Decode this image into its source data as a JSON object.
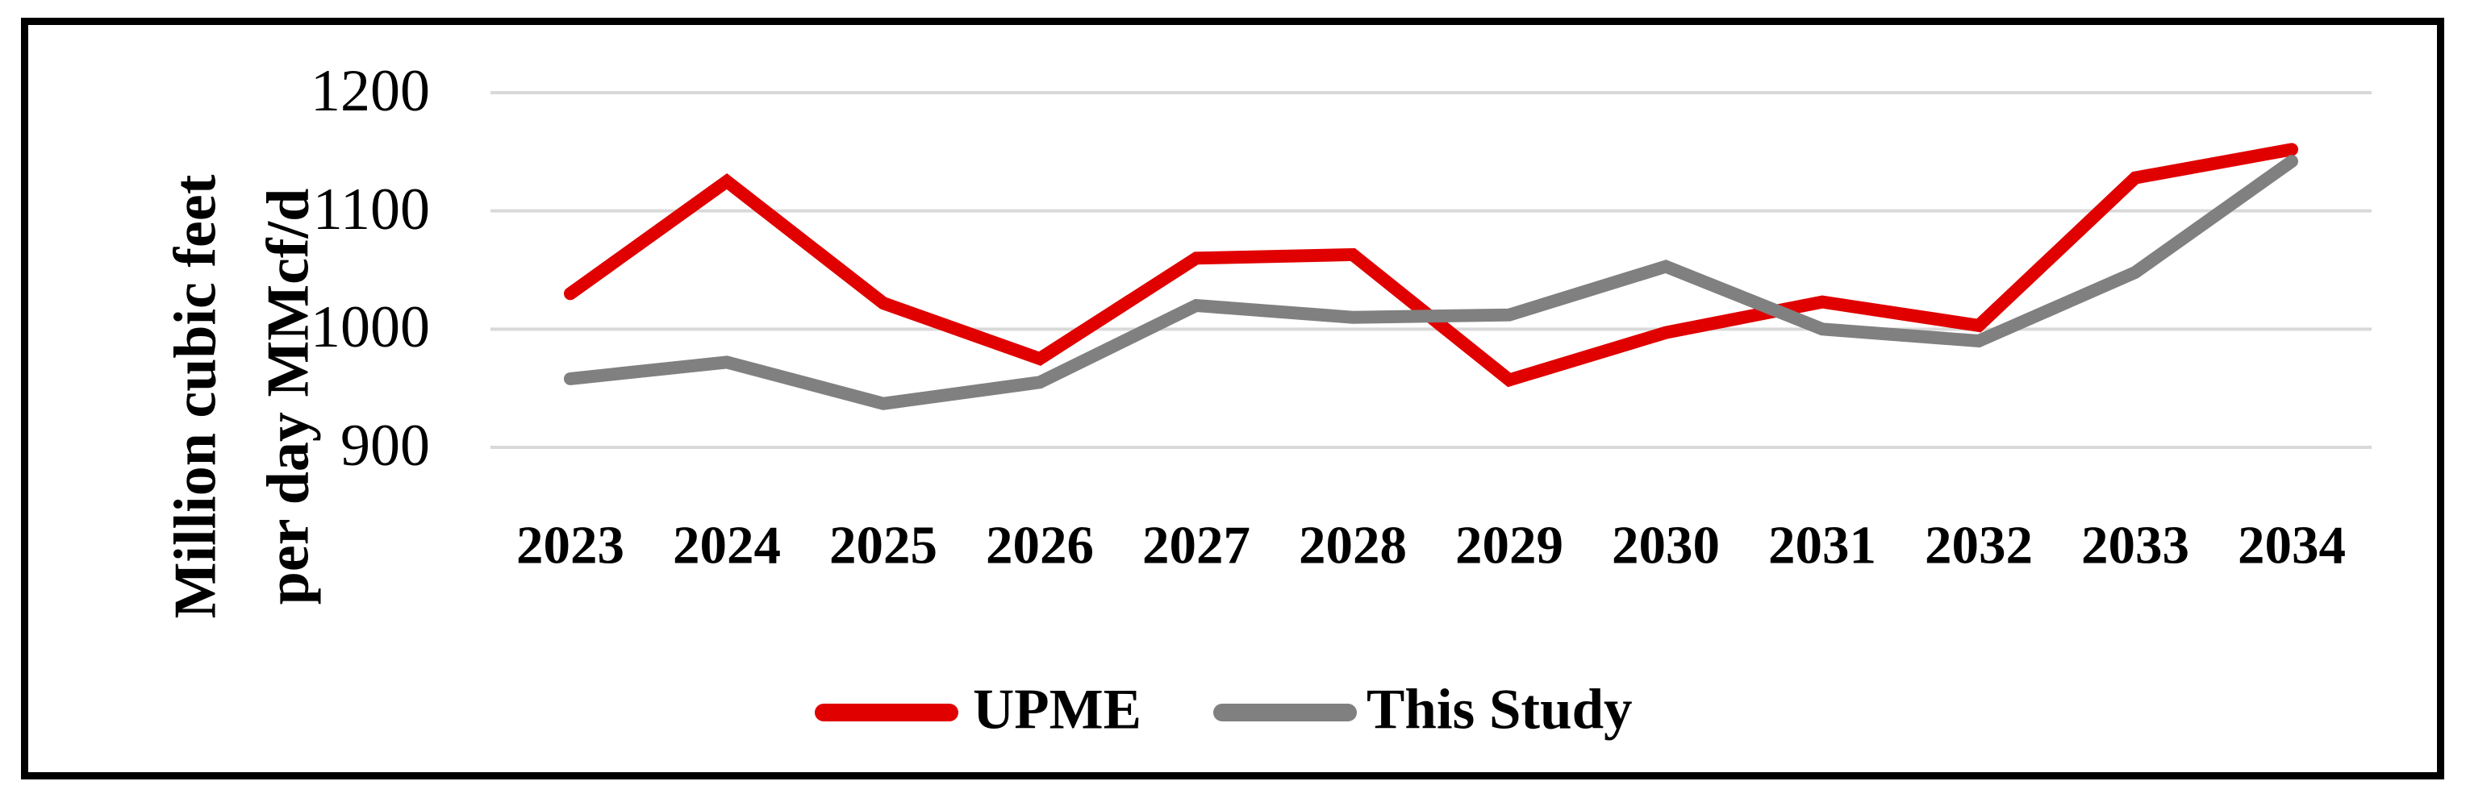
{
  "chart_data": {
    "type": "line",
    "title": "",
    "categories": [
      "2023",
      "2024",
      "2025",
      "2026",
      "2027",
      "2028",
      "2029",
      "2030",
      "2031",
      "2032",
      "2033",
      "2034"
    ],
    "series": [
      {
        "name": "UPME",
        "color": "#e00000",
        "values": [
          1030,
          1125,
          1022,
          975,
          1060,
          1063,
          957,
          997,
          1023,
          1003,
          1128,
          1152
        ]
      },
      {
        "name": "This Study",
        "color": "#808080",
        "values": [
          958,
          972,
          937,
          955,
          1020,
          1010,
          1012,
          1053,
          1000,
          990,
          1048,
          1142
        ]
      }
    ],
    "ylabel_lines": [
      "Million cubic feet",
      "per day MMcf/d"
    ],
    "yticks": [
      "1200",
      "1100",
      "1000",
      "900"
    ],
    "ylim": [
      900,
      1200
    ],
    "xlabel": "",
    "grid": "horizontal",
    "gridline_color": "#d9d9d9",
    "frame_color": "#000000",
    "background": "#ffffff",
    "legend_position": "bottom-center"
  }
}
